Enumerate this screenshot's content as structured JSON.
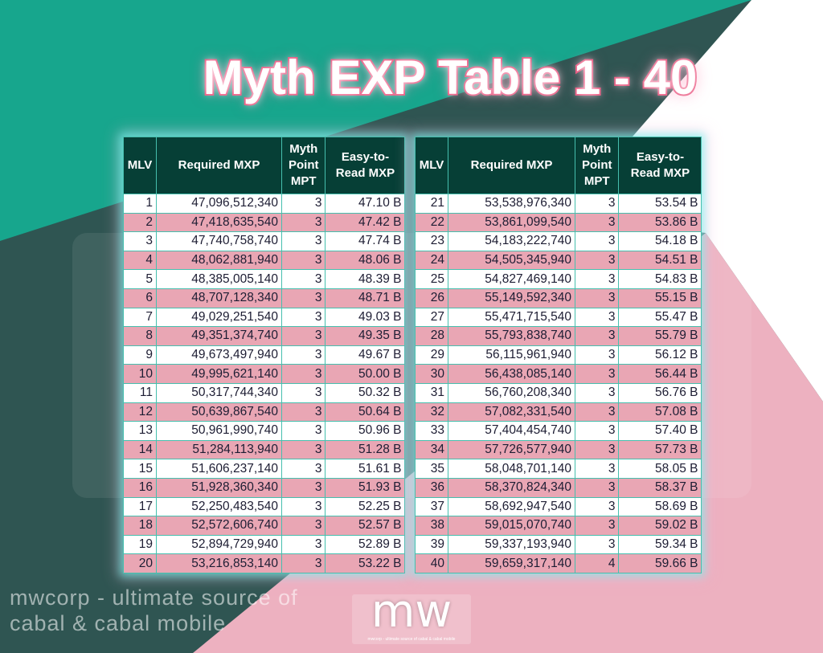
{
  "title": "Myth EXP Table 1 - 40",
  "watermark": "mwcorp - ultimate source of cabal & cabal mobile",
  "logo": {
    "mark": "mw",
    "tagline": "mwcorp - ultimate source of cabal & cabal mobile"
  },
  "colors": {
    "teal": "#17a68d",
    "slate": "#2f5552",
    "pink": "#edb1c0",
    "header": "#063f36",
    "row_pink": "#e9a6b4",
    "title_stroke": "#e54b74"
  },
  "headers": [
    "MLV",
    "Required MXP",
    "Myth Point MPT",
    "Easy-to-Read MXP"
  ],
  "tables": [
    {
      "rows": [
        [
          "1",
          "47,096,512,340",
          "3",
          "47.10 B"
        ],
        [
          "2",
          "47,418,635,540",
          "3",
          "47.42 B"
        ],
        [
          "3",
          "47,740,758,740",
          "3",
          "47.74 B"
        ],
        [
          "4",
          "48,062,881,940",
          "3",
          "48.06 B"
        ],
        [
          "5",
          "48,385,005,140",
          "3",
          "48.39 B"
        ],
        [
          "6",
          "48,707,128,340",
          "3",
          "48.71 B"
        ],
        [
          "7",
          "49,029,251,540",
          "3",
          "49.03 B"
        ],
        [
          "8",
          "49,351,374,740",
          "3",
          "49.35 B"
        ],
        [
          "9",
          "49,673,497,940",
          "3",
          "49.67 B"
        ],
        [
          "10",
          "49,995,621,140",
          "3",
          "50.00 B"
        ],
        [
          "11",
          "50,317,744,340",
          "3",
          "50.32 B"
        ],
        [
          "12",
          "50,639,867,540",
          "3",
          "50.64 B"
        ],
        [
          "13",
          "50,961,990,740",
          "3",
          "50.96 B"
        ],
        [
          "14",
          "51,284,113,940",
          "3",
          "51.28 B"
        ],
        [
          "15",
          "51,606,237,140",
          "3",
          "51.61 B"
        ],
        [
          "16",
          "51,928,360,340",
          "3",
          "51.93 B"
        ],
        [
          "17",
          "52,250,483,540",
          "3",
          "52.25 B"
        ],
        [
          "18",
          "52,572,606,740",
          "3",
          "52.57 B"
        ],
        [
          "19",
          "52,894,729,940",
          "3",
          "52.89 B"
        ],
        [
          "20",
          "53,216,853,140",
          "3",
          "53.22 B"
        ]
      ]
    },
    {
      "rows": [
        [
          "21",
          "53,538,976,340",
          "3",
          "53.54 B"
        ],
        [
          "22",
          "53,861,099,540",
          "3",
          "53.86 B"
        ],
        [
          "23",
          "54,183,222,740",
          "3",
          "54.18 B"
        ],
        [
          "24",
          "54,505,345,940",
          "3",
          "54.51 B"
        ],
        [
          "25",
          "54,827,469,140",
          "3",
          "54.83 B"
        ],
        [
          "26",
          "55,149,592,340",
          "3",
          "55.15 B"
        ],
        [
          "27",
          "55,471,715,540",
          "3",
          "55.47 B"
        ],
        [
          "28",
          "55,793,838,740",
          "3",
          "55.79 B"
        ],
        [
          "29",
          "56,115,961,940",
          "3",
          "56.12 B"
        ],
        [
          "30",
          "56,438,085,140",
          "3",
          "56.44 B"
        ],
        [
          "31",
          "56,760,208,340",
          "3",
          "56.76 B"
        ],
        [
          "32",
          "57,082,331,540",
          "3",
          "57.08 B"
        ],
        [
          "33",
          "57,404,454,740",
          "3",
          "57.40 B"
        ],
        [
          "34",
          "57,726,577,940",
          "3",
          "57.73 B"
        ],
        [
          "35",
          "58,048,701,140",
          "3",
          "58.05 B"
        ],
        [
          "36",
          "58,370,824,340",
          "3",
          "58.37 B"
        ],
        [
          "37",
          "58,692,947,540",
          "3",
          "58.69 B"
        ],
        [
          "38",
          "59,015,070,740",
          "3",
          "59.02 B"
        ],
        [
          "39",
          "59,337,193,940",
          "3",
          "59.34 B"
        ],
        [
          "40",
          "59,659,317,140",
          "4",
          "59.66 B"
        ]
      ]
    }
  ]
}
